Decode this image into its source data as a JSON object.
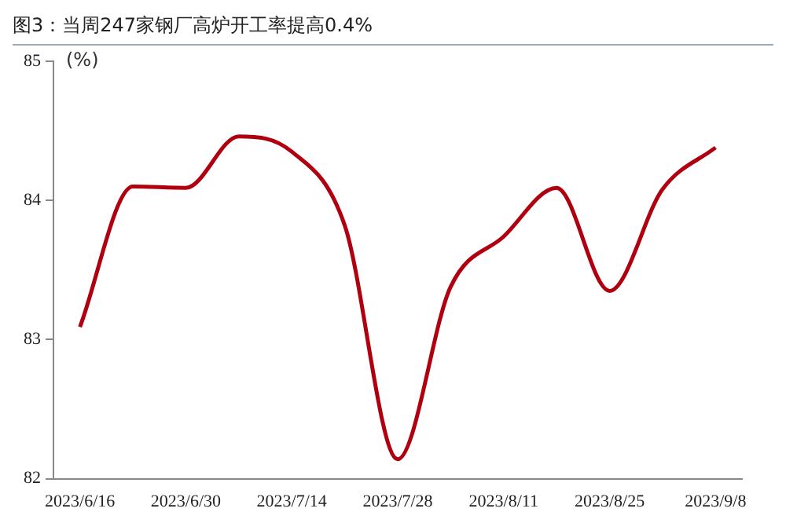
{
  "chart_data": {
    "type": "line",
    "title": "图3：当周247家钢厂高炉开工率提高0.4%",
    "ylabel": "(%)",
    "categories": [
      "2023/6/16",
      null,
      "2023/6/30",
      null,
      "2023/7/14",
      null,
      "2023/7/28",
      null,
      "2023/8/11",
      null,
      "2023/8/25",
      null,
      "2023/9/8"
    ],
    "series": [
      {
        "color": "#b00010",
        "values": [
          83.09,
          84.1,
          84.09,
          84.46,
          84.35,
          83.82,
          82.14,
          83.38,
          83.74,
          84.09,
          83.35,
          84.08,
          84.38
        ]
      }
    ],
    "ylim": [
      82,
      85
    ],
    "yticks": [
      82,
      83,
      84,
      85
    ],
    "grid": false,
    "legend": false,
    "marker": "none",
    "line_style": "solid"
  }
}
